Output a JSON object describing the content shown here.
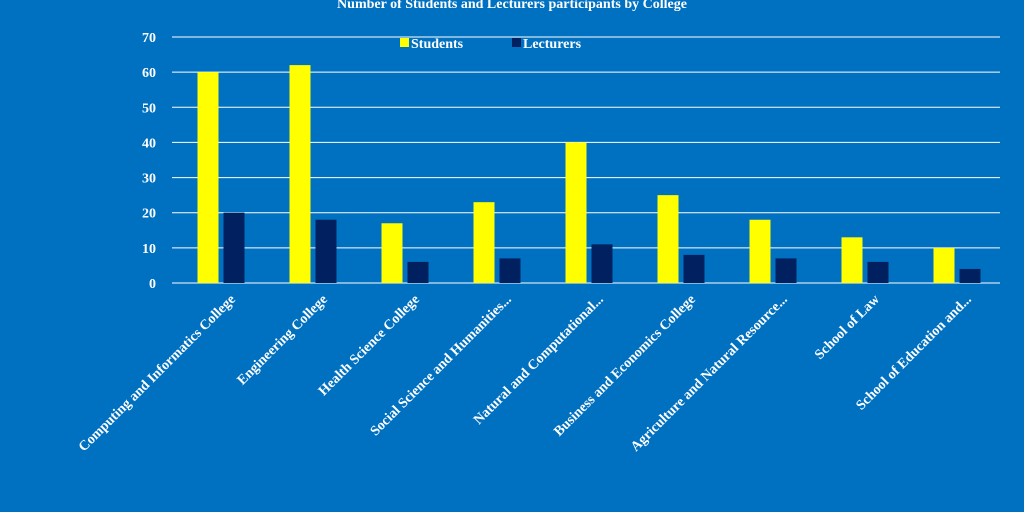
{
  "chart_data": {
    "type": "bar",
    "title": "Number of Students and Lecturers participants by College",
    "xlabel": "",
    "ylabel": "",
    "categories": [
      "Computing and Informatics College",
      "Engineering College",
      "Health Science College",
      "Social Science and Humanities...",
      "Natural and Computational...",
      "Business and Economics College",
      "Agriculture and Natural Resource...",
      "School of Law",
      "School of Education and..."
    ],
    "series": [
      {
        "name": "Students",
        "color": "#FFFF00",
        "values": [
          60,
          62,
          17,
          23,
          40,
          25,
          18,
          13,
          10
        ]
      },
      {
        "name": "Lecturers",
        "color": "#002060",
        "values": [
          20,
          18,
          6,
          7,
          11,
          8,
          7,
          6,
          4
        ]
      }
    ],
    "ylim": [
      0,
      70
    ],
    "yticks": [
      0,
      10,
      20,
      30,
      40,
      50,
      60,
      70
    ],
    "grid": true,
    "legend": "top-center"
  },
  "colors": {
    "background": "#0070C0",
    "gridline": "#FFFFFF",
    "text": "#FFFFFF"
  }
}
